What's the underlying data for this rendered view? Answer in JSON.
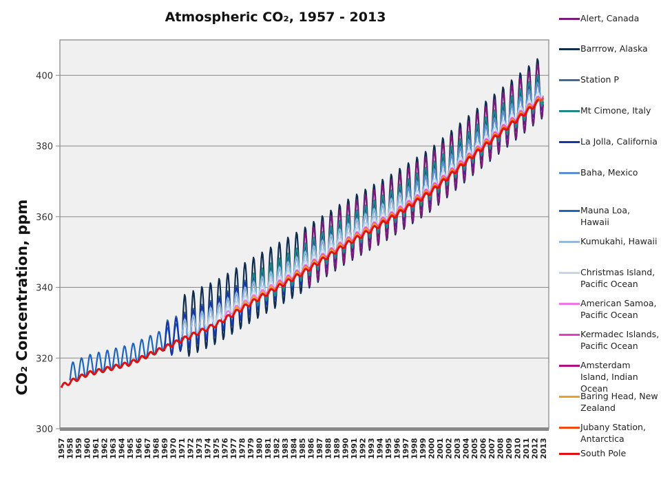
{
  "chart_data": {
    "type": "line",
    "title": "Atmospheric CO₂, 1957 - 2013",
    "xlabel": "",
    "ylabel": "CO₂ Concentration, ppm",
    "xlim": [
      1957,
      2013
    ],
    "ylim": [
      300,
      410
    ],
    "yticks": [
      300,
      320,
      340,
      360,
      380,
      400
    ],
    "xticks": [
      1957,
      1958,
      1959,
      1960,
      1961,
      1962,
      1963,
      1964,
      1965,
      1966,
      1967,
      1968,
      1969,
      1970,
      1971,
      1972,
      1973,
      1974,
      1975,
      1976,
      1977,
      1978,
      1979,
      1980,
      1981,
      1982,
      1983,
      1984,
      1985,
      1986,
      1987,
      1988,
      1989,
      1990,
      1991,
      1992,
      1993,
      1994,
      1995,
      1996,
      1997,
      1998,
      1999,
      2000,
      2001,
      2002,
      2003,
      2004,
      2005,
      2006,
      2007,
      2008,
      2009,
      2010,
      2011,
      2012,
      2013
    ],
    "grid": "horizontal",
    "legend_placement": "right",
    "base_annual_mean": {
      "years": [
        1957,
        1960,
        1965,
        1970,
        1975,
        1980,
        1985,
        1990,
        1995,
        2000,
        2005,
        2010,
        2013
      ],
      "values": [
        313.5,
        317,
        320,
        325.5,
        331,
        338.5,
        345.5,
        353.5,
        360.5,
        368.5,
        379,
        389,
        395
      ]
    },
    "series": [
      {
        "name": "Alert, Canada",
        "color": "#7a1a7a",
        "start": 1985,
        "end": 2013,
        "offset": 1.5,
        "amplitude": 8
      },
      {
        "name": "Barrrow, Alaska",
        "color": "#0f2d4f",
        "start": 1971,
        "end": 2013,
        "offset": 2,
        "amplitude": 9
      },
      {
        "name": "Station P",
        "color": "#3f6a96",
        "start": 1969,
        "end": 1981,
        "offset": 1,
        "amplitude": 5
      },
      {
        "name": "Mt Cimone, Italy",
        "color": "#1f8a85",
        "start": 1979,
        "end": 2013,
        "offset": 1.5,
        "amplitude": 5
      },
      {
        "name": "La Jolla, California",
        "color": "#1536a8",
        "start": 1969,
        "end": 2013,
        "offset": 0.5,
        "amplitude": 5
      },
      {
        "name": "Baha, Mexico",
        "color": "#5b8fcf",
        "start": 1997,
        "end": 2013,
        "offset": 1,
        "amplitude": 3
      },
      {
        "name": "Mauna Loa, Hawaii",
        "color": "#1c64bd",
        "start": 1958,
        "end": 2013,
        "offset": 0.8,
        "amplitude": 3
      },
      {
        "name": "Kumukahi, Hawaii",
        "color": "#94b8e0",
        "start": 1971,
        "end": 2013,
        "offset": 1,
        "amplitude": 3
      },
      {
        "name": "Christmas Island, Pacific Ocean",
        "color": "#c5d7ea",
        "start": 1974,
        "end": 2013,
        "offset": 0,
        "amplitude": 1.5
      },
      {
        "name": "American Samoa, Pacific Ocean",
        "color": "#f075e6",
        "start": 1976,
        "end": 2013,
        "offset": -0.5,
        "amplitude": 0.8
      },
      {
        "name": "Kermadec Islands, Pacific Ocean",
        "color": "#e83cc0",
        "start": 1982,
        "end": 2013,
        "offset": -0.8,
        "amplitude": 0.8
      },
      {
        "name": "Amsterdam Island, Indian Ocean",
        "color": "#b0107e",
        "start": 1980,
        "end": 2013,
        "offset": -1,
        "amplitude": 0.7
      },
      {
        "name": "Baring Head, New Zealand",
        "color": "#f0a020",
        "start": 1977,
        "end": 2013,
        "offset": -1,
        "amplitude": 0.8
      },
      {
        "name": "Jubany Station, Antarctica",
        "color": "#f04a10",
        "start": 1994,
        "end": 2013,
        "offset": -1.2,
        "amplitude": 0.6
      },
      {
        "name": "South Pole",
        "color": "#e01010",
        "start": 1957,
        "end": 2012.5,
        "offset": -1.5,
        "amplitude": 0.6
      }
    ]
  }
}
